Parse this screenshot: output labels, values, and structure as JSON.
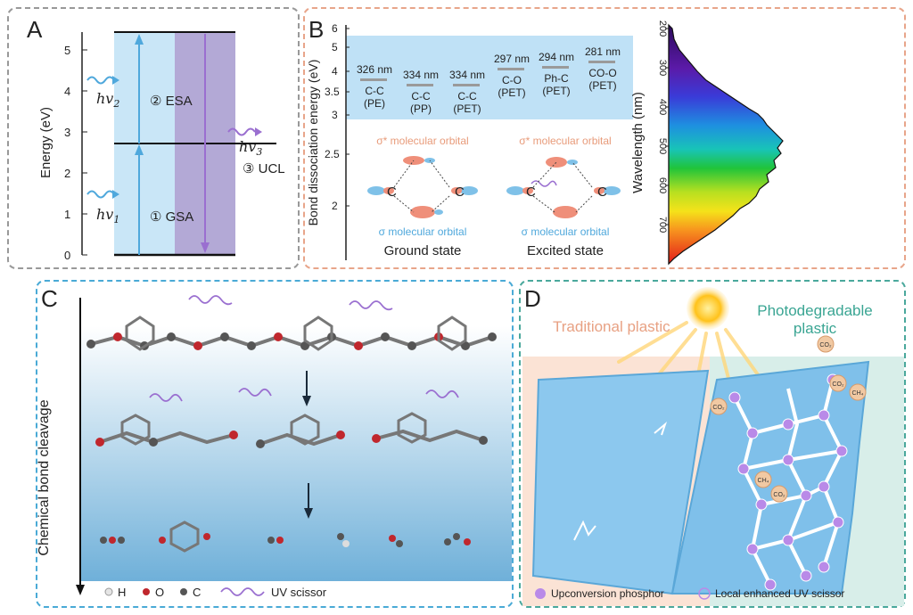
{
  "panelA": {
    "letter": "A",
    "y_label": "Energy (eV)",
    "y_ticks": [
      "0",
      "1",
      "2",
      "3",
      "4",
      "5"
    ],
    "hv1_base": "hv",
    "hv1_sub": "1",
    "hv2_base": "hv",
    "hv2_sub": "2",
    "hv3_base": "hv",
    "hv3_sub": "3",
    "gsa": "① GSA",
    "esa": "② ESA",
    "ucl": "③ UCL",
    "colors": {
      "blue_band": "#c9e6f7",
      "purple_band": "#b3a9d6",
      "arrow_blue": "#4fa8dc",
      "arrow_purple": "#9a6fd0"
    }
  },
  "panelB": {
    "letter": "B",
    "y_label": "Bond dissociation energy (eV)",
    "y_ticks": [
      "2",
      "2.5",
      "3",
      "3.5",
      "4",
      "5",
      "6"
    ],
    "bonds": [
      {
        "nm": "326 nm",
        "bond": "C-C",
        "polymer": "(PE)",
        "ev": 3.8
      },
      {
        "nm": "334 nm",
        "bond": "C-C",
        "polymer": "(PP)",
        "ev": 3.71
      },
      {
        "nm": "334 nm",
        "bond": "C-C",
        "polymer": "(PET)",
        "ev": 3.71
      },
      {
        "nm": "297 nm",
        "bond": "C-O",
        "polymer": "(PET)",
        "ev": 4.17
      },
      {
        "nm": "294 nm",
        "bond": "Ph-C",
        "polymer": "(PET)",
        "ev": 4.22
      },
      {
        "nm": "281 nm",
        "bond": "CO-O",
        "polymer": "(PET)",
        "ev": 4.41
      }
    ],
    "sigma_star": "σ* molecular orbital",
    "sigma": "σ molecular orbital",
    "ground": "Ground state",
    "excited": "Excited state",
    "c_atom": "C",
    "spectrum_ylabel": "Wavelength (nm)",
    "spectrum_ticks": [
      "200",
      "300",
      "400",
      "500",
      "600",
      "700"
    ]
  },
  "panelC": {
    "letter": "C",
    "axis_label": "Chemical bond cleavage",
    "legend": {
      "h": "H",
      "o": "O",
      "c": "C",
      "uv": "UV scissor"
    }
  },
  "panelD": {
    "letter": "D",
    "traditional": "Traditional plastic",
    "photo_line1": "Photodegradable",
    "photo_line2": "plastic",
    "co2": "CO₂",
    "ch4": "CH₄",
    "legend_phosphor": "Upconversion phosphor",
    "legend_scissor": "Local enhanced UV scissor"
  }
}
